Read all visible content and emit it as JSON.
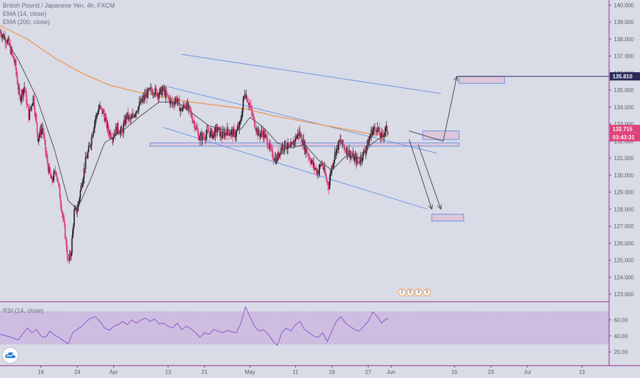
{
  "legend": {
    "title": "British Pound / Japanese Yen, 4h, FXCM",
    "ema_fast": "EMA (14, close)",
    "ema_slow": "EMA (200, close)",
    "rsi": "RSI (14, close)"
  },
  "colors": {
    "background": "#d9dbe6",
    "candle_up": "#2b2b2b",
    "candle_down": "#e0407a",
    "ema_fast": "#4f4f4f",
    "ema_slow": "#f0913c",
    "channel": "#5b8de0",
    "rsi_line": "#9250c8",
    "rsi_band": "#c9b6e0",
    "axis_line": "#8a2a8a"
  },
  "events_badge": [
    "2",
    "5",
    "3",
    "3"
  ],
  "chart_data": {
    "type": "candlestick",
    "symbol": "GBPJPY",
    "timeframe": "4h",
    "y_axis": {
      "range": [
        122.6,
        140.3
      ],
      "ticks": [
        "123.000",
        "124.000",
        "125.000",
        "126.000",
        "127.000",
        "128.000",
        "129.000",
        "130.000",
        "131.000",
        "132.000",
        "133.000",
        "134.000",
        "135.000",
        "136.000",
        "137.000",
        "138.000",
        "139.000",
        "140.000"
      ],
      "last_price_label": "132.715",
      "countdown_label": "03:43:31",
      "target_price_label": "135.810"
    },
    "x_axis": {
      "ticks": [
        {
          "label": "16",
          "d": 15
        },
        {
          "label": "24",
          "d": 23
        },
        {
          "label": "Apr",
          "d": 31
        },
        {
          "label": "13",
          "d": 43
        },
        {
          "label": "21",
          "d": 51
        },
        {
          "label": "May",
          "d": 61
        },
        {
          "label": "11",
          "d": 71
        },
        {
          "label": "19",
          "d": 79
        },
        {
          "label": "27",
          "d": 87
        },
        {
          "label": "Jun",
          "d": 92
        },
        {
          "label": "15",
          "d": 106
        },
        {
          "label": "23",
          "d": 114
        },
        {
          "label": "Jul",
          "d": 122
        },
        {
          "label": "13",
          "d": 134
        }
      ],
      "day_range": [
        6,
        140
      ]
    },
    "price_path": [
      [
        6,
        138.5
      ],
      [
        8,
        137.8
      ],
      [
        9.5,
        136.5
      ],
      [
        10.5,
        134.5
      ],
      [
        11.5,
        135.2
      ],
      [
        12.5,
        133.5
      ],
      [
        13.5,
        134.6
      ],
      [
        14.5,
        132.2
      ],
      [
        15.5,
        132.8
      ],
      [
        16.5,
        130.8
      ],
      [
        17.5,
        129.6
      ],
      [
        18.5,
        130.3
      ],
      [
        19.5,
        128.5
      ],
      [
        20.5,
        126.5
      ],
      [
        21.2,
        124.8
      ],
      [
        21.8,
        125.5
      ],
      [
        22.5,
        127.8
      ],
      [
        23.2,
        128.0
      ],
      [
        24,
        129.3
      ],
      [
        25,
        130.8
      ],
      [
        26,
        131.8
      ],
      [
        27,
        133.2
      ],
      [
        28,
        134.0
      ],
      [
        29,
        133.6
      ],
      [
        30,
        132.6
      ],
      [
        31,
        132.3
      ],
      [
        32,
        132.8
      ],
      [
        33,
        132.5
      ],
      [
        34,
        133.5
      ],
      [
        35,
        133.2
      ],
      [
        36,
        133.8
      ],
      [
        37,
        134.2
      ],
      [
        38,
        134.6
      ],
      [
        39,
        134.9
      ],
      [
        40,
        135.0
      ],
      [
        41,
        134.8
      ],
      [
        42,
        135.0
      ],
      [
        43,
        134.6
      ],
      [
        44,
        134.2
      ],
      [
        45,
        134.5
      ],
      [
        46,
        133.8
      ],
      [
        47,
        134.2
      ],
      [
        48,
        133.7
      ],
      [
        49,
        133.0
      ],
      [
        50,
        132.2
      ],
      [
        51,
        132.3
      ],
      [
        52,
        132.5
      ],
      [
        53,
        132.4
      ],
      [
        54,
        132.7
      ],
      [
        55,
        132.3
      ],
      [
        56,
        132.6
      ],
      [
        57,
        132.5
      ],
      [
        58,
        132.4
      ],
      [
        59,
        133.0
      ],
      [
        60,
        134.9
      ],
      [
        61,
        134.2
      ],
      [
        62,
        133.2
      ],
      [
        63,
        132.4
      ],
      [
        64,
        132.5
      ],
      [
        65,
        132.0
      ],
      [
        66,
        131.2
      ],
      [
        67,
        130.9
      ],
      [
        68,
        131.6
      ],
      [
        69,
        131.8
      ],
      [
        70,
        131.5
      ],
      [
        71,
        132.1
      ],
      [
        72,
        132.5
      ],
      [
        73,
        131.8
      ],
      [
        74,
        131.2
      ],
      [
        75,
        130.6
      ],
      [
        76,
        130.2
      ],
      [
        77,
        130.7
      ],
      [
        78,
        129.7
      ],
      [
        78.5,
        129.4
      ],
      [
        79,
        130.3
      ],
      [
        80,
        131.4
      ],
      [
        81,
        132.0
      ],
      [
        82,
        131.6
      ],
      [
        83,
        131.3
      ],
      [
        84,
        131.0
      ],
      [
        85,
        130.8
      ],
      [
        86,
        131.2
      ],
      [
        87,
        131.8
      ],
      [
        88,
        132.6
      ],
      [
        89,
        132.8
      ],
      [
        90,
        132.2
      ],
      [
        91,
        132.7
      ],
      [
        91.5,
        132.6
      ]
    ],
    "ema_fast": [
      [
        6,
        138.5
      ],
      [
        10,
        136.8
      ],
      [
        14,
        134.6
      ],
      [
        18,
        131.5
      ],
      [
        21,
        128.5
      ],
      [
        23,
        128.0
      ],
      [
        26,
        129.8
      ],
      [
        29,
        131.9
      ],
      [
        33,
        132.6
      ],
      [
        37,
        133.5
      ],
      [
        41,
        134.3
      ],
      [
        45,
        134.3
      ],
      [
        49,
        133.5
      ],
      [
        52,
        132.9
      ],
      [
        56,
        132.6
      ],
      [
        59,
        132.7
      ],
      [
        61,
        133.4
      ],
      [
        64,
        132.8
      ],
      [
        67,
        131.9
      ],
      [
        70,
        131.6
      ],
      [
        73,
        131.8
      ],
      [
        76,
        130.9
      ],
      [
        79,
        130.3
      ],
      [
        82,
        131.1
      ],
      [
        85,
        131.0
      ],
      [
        88,
        131.9
      ],
      [
        91.5,
        132.5
      ]
    ],
    "ema_slow": [
      [
        6,
        138.8
      ],
      [
        12,
        138.0
      ],
      [
        18,
        136.9
      ],
      [
        24,
        136.0
      ],
      [
        30,
        135.3
      ],
      [
        36,
        134.9
      ],
      [
        42,
        134.6
      ],
      [
        48,
        134.3
      ],
      [
        54,
        134.1
      ],
      [
        60,
        133.9
      ],
      [
        66,
        133.5
      ],
      [
        72,
        133.2
      ],
      [
        78,
        132.9
      ],
      [
        84,
        132.6
      ],
      [
        88,
        132.4
      ],
      [
        91.5,
        132.3
      ]
    ],
    "channel_lines": [
      {
        "from": [
          46,
          137.1
        ],
        "to": [
          103,
          134.8
        ]
      },
      {
        "from": [
          43,
          135.2
        ],
        "to": [
          102,
          131.3
        ]
      },
      {
        "from": [
          42,
          132.8
        ],
        "to": [
          100,
          128.0
        ]
      }
    ],
    "zones": [
      {
        "from": [
          39,
          131.9
        ],
        "to": [
          107,
          131.7
        ]
      },
      {
        "from": [
          99,
          132.6
        ],
        "to": [
          107,
          132.1
        ]
      },
      {
        "from": [
          107,
          135.8
        ],
        "to": [
          117,
          135.4
        ]
      },
      {
        "from": [
          101,
          127.7
        ],
        "to": [
          108,
          127.3
        ]
      }
    ],
    "horizontal_lines": [
      {
        "from": 106.5,
        "to": 140,
        "price": 135.81
      }
    ],
    "arrows": [
      {
        "points": [
          [
            96,
            132.6
          ],
          [
            103.5,
            132.0
          ],
          [
            106.5,
            135.8
          ]
        ]
      },
      {
        "points": [
          [
            96,
            132.1
          ],
          [
            101,
            128.0
          ]
        ]
      },
      {
        "points": [
          [
            98,
            131.8
          ],
          [
            103,
            128.0
          ]
        ]
      }
    ],
    "rsi": {
      "range": [
        15,
        80
      ],
      "ticks": [
        20,
        40,
        60
      ],
      "tick_labels": [
        "20.00",
        "40.00",
        "60.00"
      ],
      "band": [
        30,
        70
      ],
      "path": [
        [
          6,
          42
        ],
        [
          8,
          39
        ],
        [
          10,
          35
        ],
        [
          12,
          50
        ],
        [
          13,
          44
        ],
        [
          14,
          48
        ],
        [
          15,
          40
        ],
        [
          16,
          38
        ],
        [
          17,
          46
        ],
        [
          18,
          41
        ],
        [
          19,
          38
        ],
        [
          20,
          34
        ],
        [
          21,
          30
        ],
        [
          22,
          44
        ],
        [
          23,
          48
        ],
        [
          24,
          52
        ],
        [
          25,
          58
        ],
        [
          26,
          62
        ],
        [
          27,
          64
        ],
        [
          28,
          58
        ],
        [
          29,
          50
        ],
        [
          30,
          47
        ],
        [
          31,
          52
        ],
        [
          32,
          54
        ],
        [
          33,
          58
        ],
        [
          34,
          54
        ],
        [
          35,
          60
        ],
        [
          36,
          56
        ],
        [
          37,
          60
        ],
        [
          38,
          62
        ],
        [
          39,
          58
        ],
        [
          40,
          61
        ],
        [
          41,
          55
        ],
        [
          42,
          56
        ],
        [
          43,
          52
        ],
        [
          44,
          50
        ],
        [
          45,
          56
        ],
        [
          46,
          48
        ],
        [
          47,
          52
        ],
        [
          48,
          49
        ],
        [
          49,
          44
        ],
        [
          50,
          38
        ],
        [
          51,
          44
        ],
        [
          52,
          42
        ],
        [
          53,
          48
        ],
        [
          54,
          46
        ],
        [
          55,
          44
        ],
        [
          56,
          47
        ],
        [
          57,
          45
        ],
        [
          58,
          44
        ],
        [
          59,
          56
        ],
        [
          60,
          76
        ],
        [
          61,
          64
        ],
        [
          62,
          52
        ],
        [
          63,
          46
        ],
        [
          64,
          48
        ],
        [
          65,
          42
        ],
        [
          66,
          34
        ],
        [
          67,
          28
        ],
        [
          68,
          44
        ],
        [
          69,
          50
        ],
        [
          70,
          46
        ],
        [
          71,
          54
        ],
        [
          72,
          58
        ],
        [
          73,
          48
        ],
        [
          74,
          44
        ],
        [
          75,
          40
        ],
        [
          76,
          38
        ],
        [
          77,
          44
        ],
        [
          78,
          33
        ],
        [
          79,
          46
        ],
        [
          80,
          58
        ],
        [
          81,
          64
        ],
        [
          82,
          56
        ],
        [
          83,
          52
        ],
        [
          84,
          48
        ],
        [
          85,
          46
        ],
        [
          86,
          52
        ],
        [
          87,
          58
        ],
        [
          88,
          70
        ],
        [
          89,
          64
        ],
        [
          90,
          56
        ],
        [
          91,
          62
        ],
        [
          91.5,
          60
        ]
      ]
    }
  }
}
